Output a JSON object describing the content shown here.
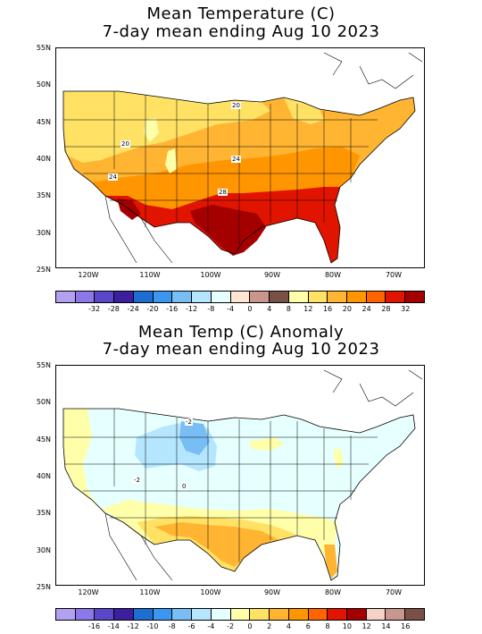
{
  "map1": {
    "title_line1": "Mean Temperature (C)",
    "title_line2": "7-day mean ending Aug 10 2023",
    "lat_labels": [
      "55N",
      "50N",
      "45N",
      "40N",
      "35N",
      "30N",
      "25N"
    ],
    "lon_labels": [
      "120W",
      "110W",
      "100W",
      "90W",
      "80W",
      "70W"
    ],
    "contour_labels": [
      "20",
      "20",
      "24",
      "24",
      "28"
    ],
    "colorbar": {
      "colors": [
        "#b4a0f0",
        "#8c78e6",
        "#5a46c8",
        "#3c1e9e",
        "#1e6ed2",
        "#3c96f0",
        "#78bef5",
        "#b4e6ff",
        "#e6ffff",
        "#ffe6d2",
        "#c8968c",
        "#785046",
        "#ffffaa",
        "#ffe164",
        "#ffb432",
        "#ff9600",
        "#ff6400",
        "#e11400",
        "#a50000"
      ],
      "labels": [
        "-32",
        "-28",
        "-24",
        "-20",
        "-16",
        "-12",
        "-8",
        "-4",
        "0",
        "4",
        "8",
        "12",
        "16",
        "20",
        "24",
        "28",
        "32"
      ]
    }
  },
  "map2": {
    "title_line1": "Mean Temp (C) Anomaly",
    "title_line2": "7-day mean ending Aug 10 2023",
    "lat_labels": [
      "55N",
      "50N",
      "45N",
      "40N",
      "35N",
      "30N",
      "25N"
    ],
    "lon_labels": [
      "120W",
      "110W",
      "100W",
      "90W",
      "80W",
      "70W"
    ],
    "contour_labels": [
      "-2",
      "-2",
      "0"
    ],
    "colorbar": {
      "colors": [
        "#b4a0f0",
        "#8c78e6",
        "#5a46c8",
        "#3c1e9e",
        "#1e6ed2",
        "#3c96f0",
        "#78bef5",
        "#b4e6ff",
        "#e6ffff",
        "#ffffaa",
        "#ffe164",
        "#ffb432",
        "#ff9600",
        "#ff6400",
        "#e11400",
        "#a50000",
        "#f5d2c8",
        "#c8968c",
        "#785046"
      ],
      "labels": [
        "-16",
        "-14",
        "-12",
        "-10",
        "-8",
        "-6",
        "-4",
        "-2",
        "0",
        "2",
        "4",
        "6",
        "8",
        "10",
        "12",
        "14",
        "16"
      ]
    }
  }
}
